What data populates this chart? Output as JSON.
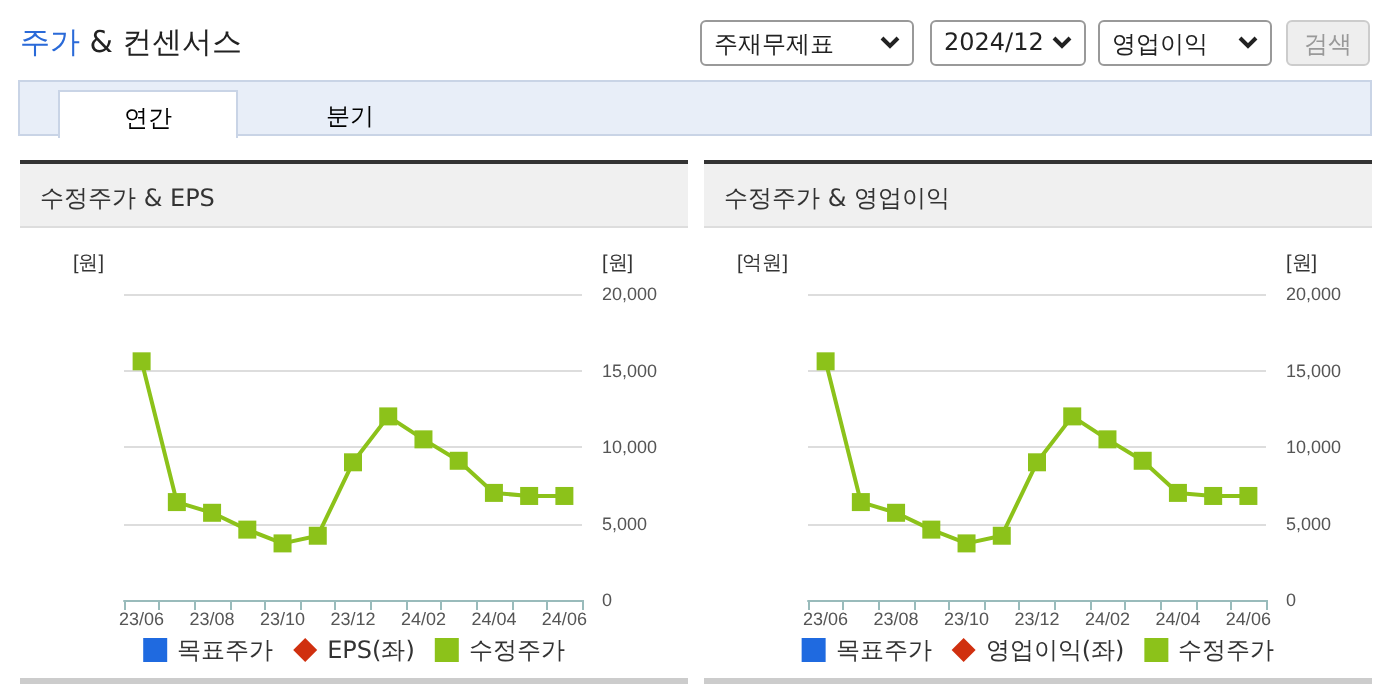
{
  "chart_data": [
    {
      "type": "other",
      "title": "주가 & 컨센서스",
      "annotations": [
        "주재무제표",
        "2024/12",
        "영업이익",
        "검색",
        "연간",
        "분기"
      ]
    },
    {
      "type": "line",
      "title": "수정주가 & EPS",
      "ylabel": "[원]",
      "y2label": "[원]",
      "categories": [
        "23/06",
        null,
        "23/08",
        null,
        "23/10",
        null,
        "23/12",
        null,
        "24/02",
        null,
        "24/04",
        null,
        "24/06"
      ],
      "series": [
        {
          "name": "목표주가",
          "type": "bar",
          "color": "#1f6ae0",
          "values": [
            null,
            null,
            null,
            null,
            null,
            null,
            null,
            null,
            null,
            null,
            null,
            null,
            null
          ]
        },
        {
          "name": "EPS(좌)",
          "type": "line",
          "marker": "diamond",
          "color": "#d0300f",
          "values": [
            null,
            null,
            null,
            null,
            null,
            null,
            null,
            null,
            null,
            null,
            null,
            null,
            null
          ]
        },
        {
          "name": "수정주가",
          "type": "line",
          "marker": "square",
          "axis": "y2",
          "color": "#8cc21a",
          "values": [
            15600,
            6400,
            5700,
            4600,
            3700,
            4200,
            9000,
            12000,
            10500,
            9100,
            7000,
            6800,
            6800
          ]
        }
      ],
      "y2lim": [
        0,
        20000
      ],
      "y2ticks": [
        {
          "value": 0,
          "label": "0"
        },
        {
          "value": 5000,
          "label": "5,000"
        },
        {
          "value": 10000,
          "label": "10,000"
        },
        {
          "value": 15000,
          "label": "15,000"
        },
        {
          "value": 20000,
          "label": "20,000"
        }
      ],
      "grid": "y",
      "legend": "bottom"
    },
    {
      "type": "line",
      "title": "수정주가 & 영업이익",
      "ylabel": "[억원]",
      "y2label": "[원]",
      "categories": [
        "23/06",
        null,
        "23/08",
        null,
        "23/10",
        null,
        "23/12",
        null,
        "24/02",
        null,
        "24/04",
        null,
        "24/06"
      ],
      "series": [
        {
          "name": "목표주가",
          "type": "bar",
          "color": "#1f6ae0",
          "values": [
            null,
            null,
            null,
            null,
            null,
            null,
            null,
            null,
            null,
            null,
            null,
            null,
            null
          ]
        },
        {
          "name": "영업이익(좌)",
          "type": "line",
          "marker": "diamond",
          "color": "#d0300f",
          "values": [
            null,
            null,
            null,
            null,
            null,
            null,
            null,
            null,
            null,
            null,
            null,
            null,
            null
          ]
        },
        {
          "name": "수정주가",
          "type": "line",
          "marker": "square",
          "axis": "y2",
          "color": "#8cc21a",
          "values": [
            15600,
            6400,
            5700,
            4600,
            3700,
            4200,
            9000,
            12000,
            10500,
            9100,
            7000,
            6800,
            6800
          ]
        }
      ],
      "y2lim": [
        0,
        20000
      ],
      "y2ticks": [
        {
          "value": 0,
          "label": "0"
        },
        {
          "value": 5000,
          "label": "5,000"
        },
        {
          "value": 10000,
          "label": "10,000"
        },
        {
          "value": 15000,
          "label": "15,000"
        },
        {
          "value": 20000,
          "label": "20,000"
        }
      ],
      "grid": "y",
      "legend": "bottom"
    }
  ]
}
